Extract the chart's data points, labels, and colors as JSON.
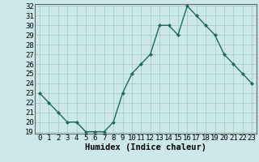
{
  "x": [
    0,
    1,
    2,
    3,
    4,
    5,
    6,
    7,
    8,
    9,
    10,
    11,
    12,
    13,
    14,
    15,
    16,
    17,
    18,
    19,
    20,
    21,
    22,
    23
  ],
  "y": [
    23,
    22,
    21,
    20,
    20,
    19,
    19,
    19,
    20,
    23,
    25,
    26,
    27,
    30,
    30,
    29,
    32,
    31,
    30,
    29,
    27,
    26,
    25,
    24
  ],
  "line_color": "#1a6b5a",
  "marker_color": "#1a6b5a",
  "bg_color": "#cce8e8",
  "grid_color": "#9ec8c8",
  "xlabel": "Humidex (Indice chaleur)",
  "ylim": [
    19,
    32
  ],
  "xlim": [
    -0.5,
    23.5
  ],
  "yticks": [
    19,
    20,
    21,
    22,
    23,
    24,
    25,
    26,
    27,
    28,
    29,
    30,
    31,
    32
  ],
  "xticks": [
    0,
    1,
    2,
    3,
    4,
    5,
    6,
    7,
    8,
    9,
    10,
    11,
    12,
    13,
    14,
    15,
    16,
    17,
    18,
    19,
    20,
    21,
    22,
    23
  ],
  "xlabel_fontsize": 7.5,
  "tick_fontsize": 6.5,
  "linewidth": 1.0,
  "markersize": 2.2
}
